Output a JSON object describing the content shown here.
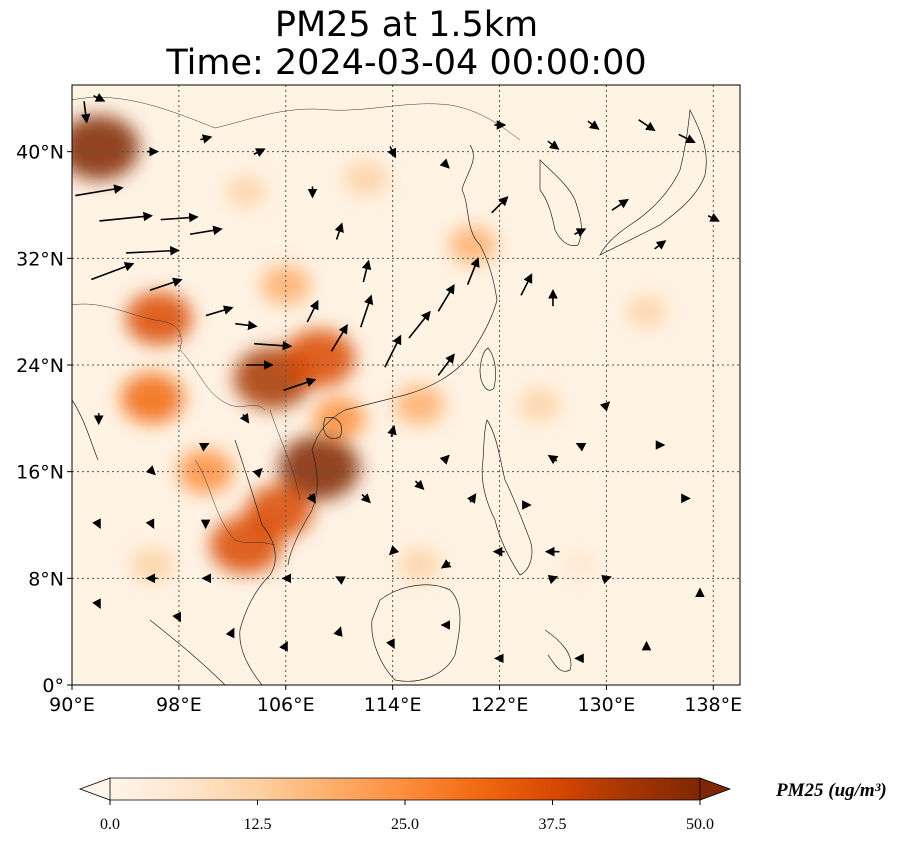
{
  "title": {
    "line1": "PM25 at 1.5km",
    "line2": "Time: 2024-03-04 00:00:00"
  },
  "map": {
    "lon_range": [
      90,
      140
    ],
    "lat_range": [
      0,
      45
    ],
    "lat_ticks": [
      {
        "value": 40,
        "label": "40°N"
      },
      {
        "value": 32,
        "label": "32°N"
      },
      {
        "value": 24,
        "label": "24°N"
      },
      {
        "value": 16,
        "label": "16°N"
      },
      {
        "value": 8,
        "label": "8°N"
      },
      {
        "value": 0,
        "label": "0°"
      }
    ],
    "lon_ticks": [
      {
        "value": 90,
        "label": "90°E"
      },
      {
        "value": 98,
        "label": "98°E"
      },
      {
        "value": 106,
        "label": "106°E"
      },
      {
        "value": 114,
        "label": "114°E"
      },
      {
        "value": 122,
        "label": "122°E"
      },
      {
        "value": 130,
        "label": "130°E"
      },
      {
        "value": 138,
        "label": "138°E"
      }
    ],
    "gridlines": "dotted",
    "field": "PM25",
    "hotspots": [
      {
        "lon": 105,
        "lat": 23,
        "value": 45
      },
      {
        "lon": 108.5,
        "lat": 24.5,
        "value": 40
      },
      {
        "lon": 108.5,
        "lat": 16.3,
        "value": 48
      },
      {
        "lon": 103,
        "lat": 10.5,
        "value": 40
      },
      {
        "lon": 96,
        "lat": 21.5,
        "value": 32
      },
      {
        "lon": 96.5,
        "lat": 27.5,
        "value": 35
      },
      {
        "lon": 92,
        "lat": 40.3,
        "value": 48
      },
      {
        "lon": 105.5,
        "lat": 13,
        "value": 35
      },
      {
        "lon": 100,
        "lat": 16,
        "value": 25
      },
      {
        "lon": 110,
        "lat": 20,
        "value": 22
      },
      {
        "lon": 116,
        "lat": 21,
        "value": 20
      },
      {
        "lon": 120,
        "lat": 33,
        "value": 18
      },
      {
        "lon": 112,
        "lat": 38,
        "value": 15
      },
      {
        "lon": 106,
        "lat": 30,
        "value": 20
      },
      {
        "lon": 125,
        "lat": 21,
        "value": 12
      },
      {
        "lon": 133,
        "lat": 28,
        "value": 10
      },
      {
        "lon": 128,
        "lat": 9,
        "value": 8
      },
      {
        "lon": 96,
        "lat": 9,
        "value": 14
      },
      {
        "lon": 116,
        "lat": 9,
        "value": 12
      },
      {
        "lon": 103,
        "lat": 37,
        "value": 10
      }
    ],
    "wind_vectors": [
      {
        "lon": 92,
        "lat": 37,
        "u": 9,
        "v": 1.5
      },
      {
        "lon": 94,
        "lat": 35,
        "u": 10,
        "v": 1
      },
      {
        "lon": 96,
        "lat": 32.5,
        "u": 10,
        "v": 0.5
      },
      {
        "lon": 93,
        "lat": 31,
        "u": 8,
        "v": 3
      },
      {
        "lon": 98,
        "lat": 35,
        "u": 7,
        "v": 0.5
      },
      {
        "lon": 100,
        "lat": 34,
        "u": 6,
        "v": 1
      },
      {
        "lon": 97,
        "lat": 30,
        "u": 6,
        "v": 2
      },
      {
        "lon": 101,
        "lat": 28,
        "u": 5,
        "v": 1.5
      },
      {
        "lon": 103,
        "lat": 27,
        "u": 4,
        "v": -0.5
      },
      {
        "lon": 105,
        "lat": 25.5,
        "u": 7,
        "v": -0.5
      },
      {
        "lon": 104,
        "lat": 24,
        "u": 5,
        "v": 0
      },
      {
        "lon": 107,
        "lat": 22.5,
        "u": 6,
        "v": 2
      },
      {
        "lon": 110,
        "lat": 26,
        "u": 3,
        "v": 5
      },
      {
        "lon": 112,
        "lat": 28,
        "u": 2,
        "v": 6
      },
      {
        "lon": 114,
        "lat": 25,
        "u": 3,
        "v": 6
      },
      {
        "lon": 116,
        "lat": 27,
        "u": 4,
        "v": 5
      },
      {
        "lon": 118,
        "lat": 29,
        "u": 3,
        "v": 5
      },
      {
        "lon": 120,
        "lat": 31,
        "u": 2,
        "v": 5
      },
      {
        "lon": 118,
        "lat": 24,
        "u": 3,
        "v": 4
      },
      {
        "lon": 112,
        "lat": 31,
        "u": 1,
        "v": 4
      },
      {
        "lon": 110,
        "lat": 34,
        "u": 1,
        "v": 3
      },
      {
        "lon": 108,
        "lat": 28,
        "u": 2,
        "v": 4
      },
      {
        "lon": 122,
        "lat": 36,
        "u": 3,
        "v": 3
      },
      {
        "lon": 124,
        "lat": 30,
        "u": 2,
        "v": 4
      },
      {
        "lon": 126,
        "lat": 29,
        "u": 0,
        "v": 3
      },
      {
        "lon": 128,
        "lat": 34,
        "u": 2,
        "v": 1
      },
      {
        "lon": 131,
        "lat": 36,
        "u": 3,
        "v": 2
      },
      {
        "lon": 134,
        "lat": 33,
        "u": 2,
        "v": 1.5
      },
      {
        "lon": 136,
        "lat": 41,
        "u": 3,
        "v": -1.5
      },
      {
        "lon": 133,
        "lat": 42,
        "u": 3,
        "v": -2
      },
      {
        "lon": 129,
        "lat": 42,
        "u": 2,
        "v": -1.5
      },
      {
        "lon": 126,
        "lat": 40.5,
        "u": 2,
        "v": -1.5
      },
      {
        "lon": 122,
        "lat": 42,
        "u": 2,
        "v": 0
      },
      {
        "lon": 138,
        "lat": 35,
        "u": 2,
        "v": -1
      },
      {
        "lon": 104,
        "lat": 40,
        "u": 2,
        "v": 1
      },
      {
        "lon": 100,
        "lat": 41,
        "u": 2,
        "v": 0.5
      },
      {
        "lon": 96,
        "lat": 40,
        "u": 2,
        "v": 0
      },
      {
        "lon": 108,
        "lat": 37,
        "u": 0,
        "v": -2
      },
      {
        "lon": 114,
        "lat": 40,
        "u": 1,
        "v": -2
      },
      {
        "lon": 118,
        "lat": 39,
        "u": 1,
        "v": -1
      },
      {
        "lon": 92,
        "lat": 20,
        "u": 0,
        "v": -2
      },
      {
        "lon": 96,
        "lat": 16,
        "u": 1,
        "v": -1
      },
      {
        "lon": 100,
        "lat": 18,
        "u": 1,
        "v": 0.5
      },
      {
        "lon": 104,
        "lat": 16,
        "u": 1,
        "v": 1
      },
      {
        "lon": 108,
        "lat": 14,
        "u": 1,
        "v": -1.5
      },
      {
        "lon": 112,
        "lat": 14,
        "u": 1.5,
        "v": -1.5
      },
      {
        "lon": 116,
        "lat": 15,
        "u": 1.5,
        "v": -1.5
      },
      {
        "lon": 114,
        "lat": 19,
        "u": 0.5,
        "v": 2
      },
      {
        "lon": 118,
        "lat": 17,
        "u": 1,
        "v": 1
      },
      {
        "lon": 120,
        "lat": 14,
        "u": 1,
        "v": 1.5
      },
      {
        "lon": 124,
        "lat": 13.5,
        "u": 1.5,
        "v": 0
      },
      {
        "lon": 126,
        "lat": 17,
        "u": -1.5,
        "v": 1
      },
      {
        "lon": 128,
        "lat": 18,
        "u": -1,
        "v": 0.5
      },
      {
        "lon": 130,
        "lat": 21,
        "u": 1,
        "v": 1
      },
      {
        "lon": 134,
        "lat": 18,
        "u": 1.5,
        "v": 0
      },
      {
        "lon": 136,
        "lat": 14,
        "u": 1,
        "v": 0
      },
      {
        "lon": 126,
        "lat": 10,
        "u": -2.5,
        "v": 0
      },
      {
        "lon": 122,
        "lat": 10,
        "u": -2,
        "v": 0
      },
      {
        "lon": 130,
        "lat": 8,
        "u": 1.5,
        "v": 0.5
      },
      {
        "lon": 126,
        "lat": 8,
        "u": 1.5,
        "v": 0.5
      },
      {
        "lon": 118,
        "lat": 9,
        "u": -1.5,
        "v": -1
      },
      {
        "lon": 114,
        "lat": 10,
        "u": -1,
        "v": -1
      },
      {
        "lon": 110,
        "lat": 8,
        "u": -1,
        "v": 0.5
      },
      {
        "lon": 106,
        "lat": 8,
        "u": -1,
        "v": 0
      },
      {
        "lon": 100,
        "lat": 8,
        "u": -1,
        "v": 0
      },
      {
        "lon": 96,
        "lat": 8,
        "u": -2,
        "v": 0
      },
      {
        "lon": 92,
        "lat": 6,
        "u": 0.5,
        "v": -1
      },
      {
        "lon": 98,
        "lat": 5,
        "u": 0.5,
        "v": -1
      },
      {
        "lon": 102,
        "lat": 4,
        "u": 0.5,
        "v": 1
      },
      {
        "lon": 106,
        "lat": 3,
        "u": 0.5,
        "v": 1
      },
      {
        "lon": 110,
        "lat": 4,
        "u": 0.5,
        "v": 1.5
      },
      {
        "lon": 114,
        "lat": 3,
        "u": 0.5,
        "v": -1
      },
      {
        "lon": 118,
        "lat": 4.5,
        "u": -1.5,
        "v": 0
      },
      {
        "lon": 122,
        "lat": 2,
        "u": -1.5,
        "v": 0
      },
      {
        "lon": 128,
        "lat": 2,
        "u": -1.5,
        "v": 0
      },
      {
        "lon": 133,
        "lat": 3,
        "u": 0,
        "v": 1
      },
      {
        "lon": 137,
        "lat": 7,
        "u": 0,
        "v": 1
      },
      {
        "lon": 92,
        "lat": 12,
        "u": 0.5,
        "v": -1
      },
      {
        "lon": 96,
        "lat": 12,
        "u": 0.5,
        "v": -1
      },
      {
        "lon": 100,
        "lat": 12,
        "u": 0,
        "v": -1
      },
      {
        "lon": 103,
        "lat": 20,
        "u": 1,
        "v": -1.5
      },
      {
        "lon": 92,
        "lat": 44,
        "u": 2,
        "v": -1
      },
      {
        "lon": 91,
        "lat": 43,
        "u": 0.5,
        "v": -4
      }
    ]
  },
  "colorbar": {
    "label": "PM25 (ug/m³)",
    "min": 0,
    "max": 50,
    "extend": "both",
    "colors": [
      "#fff5eb",
      "#fee6ce",
      "#fdd0a2",
      "#fdae6b",
      "#fd8d3c",
      "#f16913",
      "#d94801",
      "#a63603",
      "#7f2704"
    ],
    "ticks": [
      {
        "value": 0,
        "label": "0.0"
      },
      {
        "value": 12.5,
        "label": "12.5"
      },
      {
        "value": 25,
        "label": "25.0"
      },
      {
        "value": 37.5,
        "label": "37.5"
      },
      {
        "value": 50,
        "label": "50.0"
      }
    ]
  }
}
